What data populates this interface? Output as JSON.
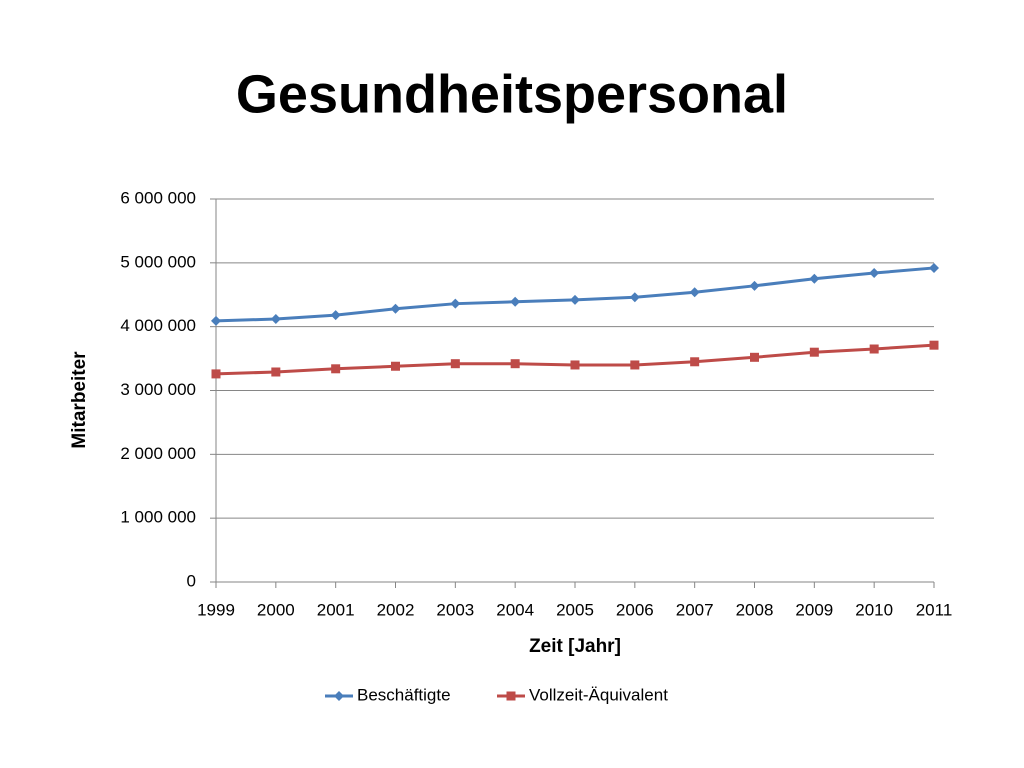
{
  "chart_data": {
    "type": "line",
    "title": "Gesundheitspersonal",
    "x_label": "Zeit [Jahr]",
    "y_label": "Mitarbeiter",
    "categories": [
      "1999",
      "2000",
      "2001",
      "2002",
      "2003",
      "2004",
      "2005",
      "2006",
      "2007",
      "2008",
      "2009",
      "2010",
      "2011"
    ],
    "series": [
      {
        "name": "Beschäftigte",
        "color": "#4a7ebb",
        "marker": "diamond",
        "values": [
          4090000,
          4120000,
          4180000,
          4280000,
          4360000,
          4390000,
          4420000,
          4460000,
          4540000,
          4640000,
          4750000,
          4840000,
          4920000
        ]
      },
      {
        "name": "Vollzeit-Äquivalent",
        "color": "#be4b48",
        "marker": "square",
        "values": [
          3260000,
          3290000,
          3340000,
          3380000,
          3420000,
          3420000,
          3400000,
          3400000,
          3450000,
          3520000,
          3600000,
          3650000,
          3710000
        ]
      }
    ],
    "ylim": [
      0,
      6000000
    ],
    "yticks": [
      0,
      {
        "value": 1000000,
        "label": "1 000 000"
      },
      {
        "value": 2000000,
        "label": "2 000 000"
      },
      {
        "value": 3000000,
        "label": "3 000 000"
      },
      {
        "value": 4000000,
        "label": "4 000 000"
      },
      {
        "value": 5000000,
        "label": "5 000 000"
      },
      {
        "value": 6000000,
        "label": "6 000 000"
      }
    ],
    "grid": true,
    "legend": "bottom"
  }
}
